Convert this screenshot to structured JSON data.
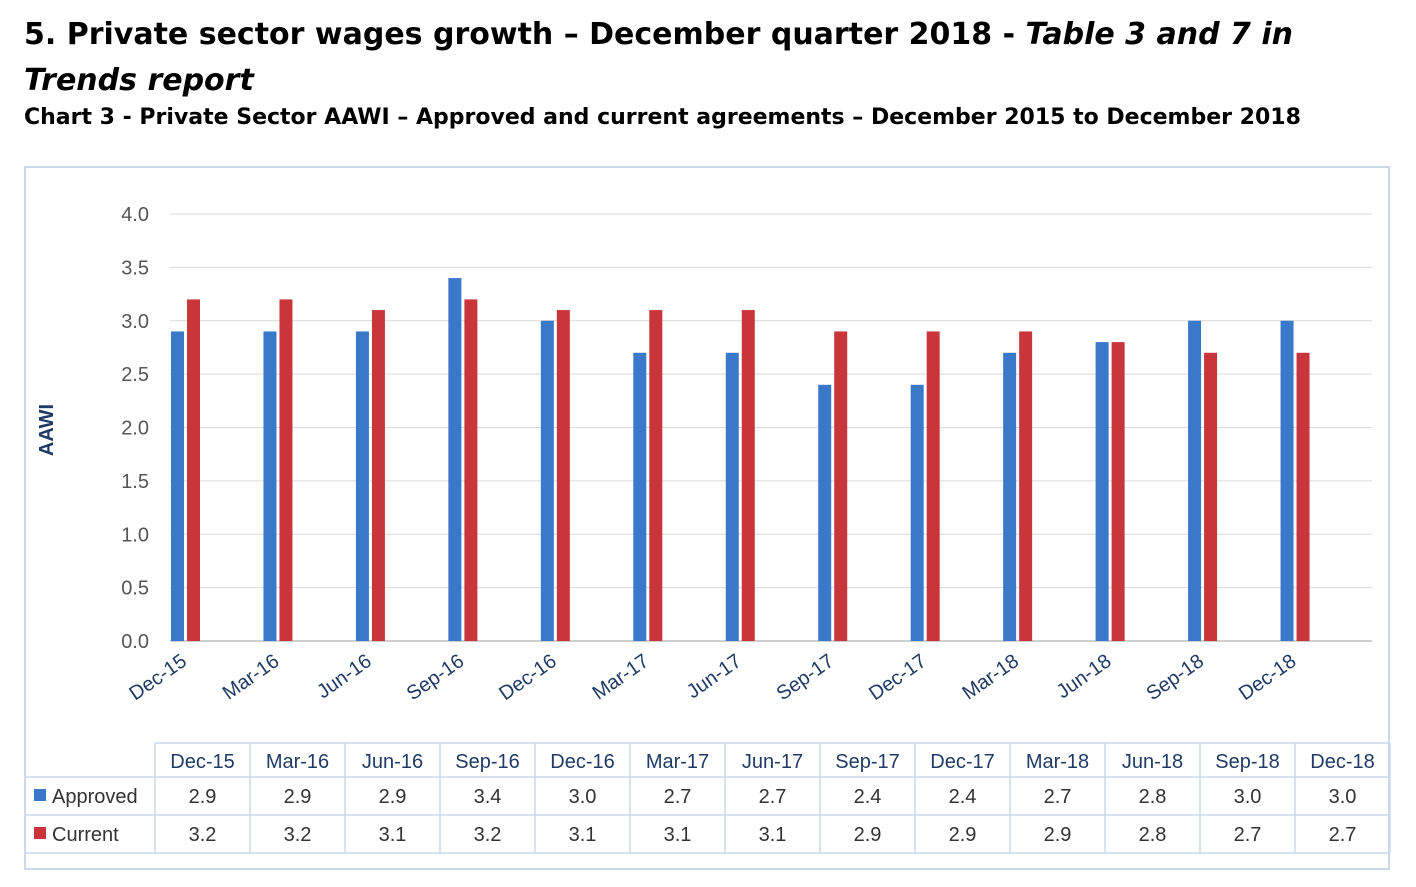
{
  "heading": {
    "main": "5. Private sector wages growth – December quarter 2018 - ",
    "italic": "Table 3 and 7 in Trends report"
  },
  "subheading": "Chart 3 - Private Sector AAWI – Approved and current agreements – December 2015 to December 2018",
  "colors": {
    "approved": "#3a78c9",
    "current": "#c8353a",
    "grid": "#d9d9d9",
    "frame": "#c9d8ea"
  },
  "chart_data": {
    "type": "bar",
    "title": "Chart 3 - Private Sector AAWI – Approved and current agreements – December 2015 to December 2018",
    "xlabel": "",
    "ylabel": "AAWI",
    "ylim": [
      0,
      4
    ],
    "yticks": [
      "0.0",
      "0.5",
      "1.0",
      "1.5",
      "2.0",
      "2.5",
      "3.0",
      "3.5",
      "4.0"
    ],
    "grid": true,
    "legend": "data-table",
    "categories": [
      "Dec-15",
      "Mar-16",
      "Jun-16",
      "Sep-16",
      "Dec-16",
      "Mar-17",
      "Jun-17",
      "Sep-17",
      "Dec-17",
      "Mar-18",
      "Jun-18",
      "Sep-18",
      "Dec-18"
    ],
    "series": [
      {
        "name": "Approved",
        "values": [
          2.9,
          2.9,
          2.9,
          3.4,
          3.0,
          2.7,
          2.7,
          2.4,
          2.4,
          2.7,
          2.8,
          3.0,
          3.0
        ]
      },
      {
        "name": "Current",
        "values": [
          3.2,
          3.2,
          3.1,
          3.2,
          3.1,
          3.1,
          3.1,
          2.9,
          2.9,
          2.9,
          2.8,
          2.7,
          2.7
        ]
      }
    ],
    "table": {
      "Approved": [
        "2.9",
        "2.9",
        "2.9",
        "3.4",
        "3.0",
        "2.7",
        "2.7",
        "2.4",
        "2.4",
        "2.7",
        "2.8",
        "3.0",
        "3.0"
      ],
      "Current": [
        "3.2",
        "3.2",
        "3.1",
        "3.2",
        "3.1",
        "3.1",
        "3.1",
        "2.9",
        "2.9",
        "2.9",
        "2.8",
        "2.7",
        "2.7"
      ]
    }
  }
}
